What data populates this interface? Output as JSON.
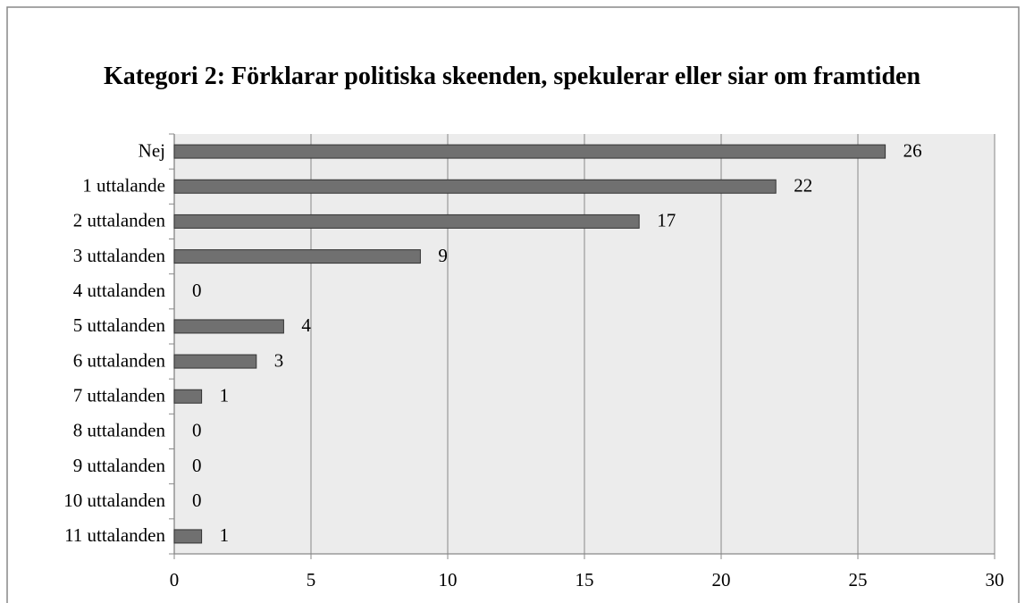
{
  "chart_data": {
    "type": "bar",
    "orientation": "horizontal",
    "title": "Kategori 2: Förklarar politiska skeenden, spekulerar eller siar om framtiden",
    "categories": [
      "Nej",
      "1 uttalande",
      "2 uttalanden",
      "3 uttalanden",
      "4 uttalanden",
      "5 uttalanden",
      "6 uttalanden",
      "7 uttalanden",
      "8 uttalanden",
      "9 uttalanden",
      "10 uttalanden",
      "11 uttalanden"
    ],
    "values": [
      26,
      22,
      17,
      9,
      0,
      4,
      3,
      1,
      0,
      0,
      0,
      1
    ],
    "color": "#707070",
    "xlim": [
      0,
      30
    ],
    "xticks": [
      0,
      5,
      10,
      15,
      20,
      25,
      30
    ],
    "grid": true
  }
}
